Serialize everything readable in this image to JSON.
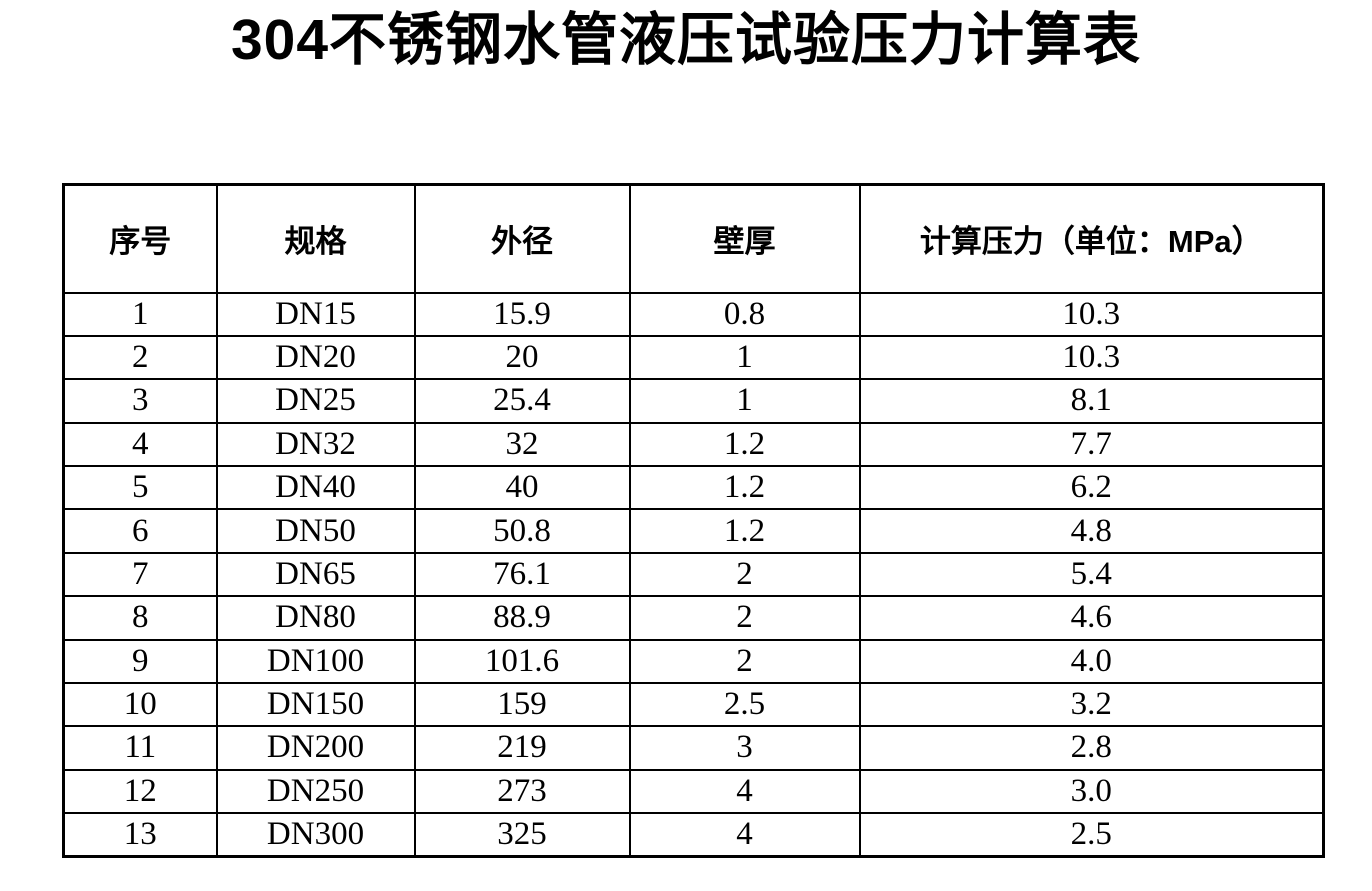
{
  "page": {
    "title": "304不锈钢水管液压试验压力计算表"
  },
  "colors": {
    "text": "#000000",
    "border": "#000000",
    "background": "#ffffff"
  },
  "table": {
    "headers": [
      "序号",
      "规格",
      "外径",
      "壁厚",
      "计算压力（单位：MPa）"
    ],
    "rows": [
      [
        "1",
        "DN15",
        "15.9",
        "0.8",
        "10.3"
      ],
      [
        "2",
        "DN20",
        "20",
        "1",
        "10.3"
      ],
      [
        "3",
        "DN25",
        "25.4",
        "1",
        "8.1"
      ],
      [
        "4",
        "DN32",
        "32",
        "1.2",
        "7.7"
      ],
      [
        "5",
        "DN40",
        "40",
        "1.2",
        "6.2"
      ],
      [
        "6",
        "DN50",
        "50.8",
        "1.2",
        "4.8"
      ],
      [
        "7",
        "DN65",
        "76.1",
        "2",
        "5.4"
      ],
      [
        "8",
        "DN80",
        "88.9",
        "2",
        "4.6"
      ],
      [
        "9",
        "DN100",
        "101.6",
        "2",
        "4.0"
      ],
      [
        "10",
        "DN150",
        "159",
        "2.5",
        "3.2"
      ],
      [
        "11",
        "DN200",
        "219",
        "3",
        "2.8"
      ],
      [
        "12",
        "DN250",
        "273",
        "4",
        "3.0"
      ],
      [
        "13",
        "DN300",
        "325",
        "4",
        "2.5"
      ]
    ]
  }
}
